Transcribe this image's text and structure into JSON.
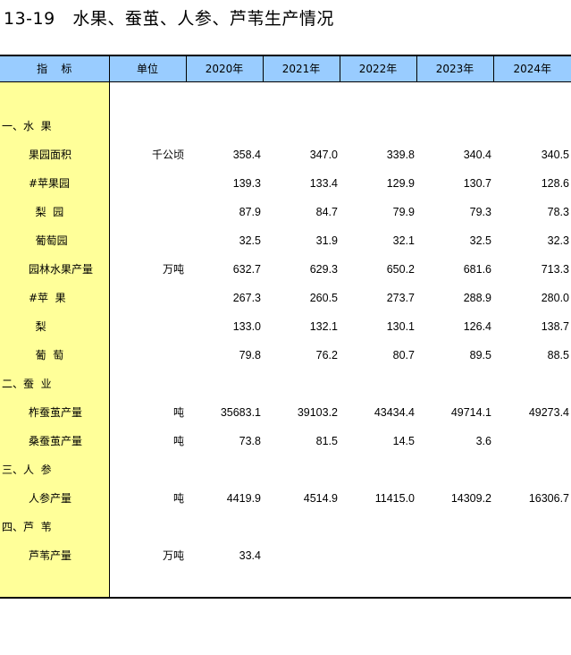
{
  "title": "13-19   水果、蚕茧、人参、芦苇生产情况",
  "headers": [
    "指    标",
    "单位",
    "2020年",
    "2021年",
    "2022年",
    "2023年",
    "2024年"
  ],
  "rows": [
    {
      "label": "一、水  果",
      "type": "section",
      "unit": "",
      "values": [
        "",
        "",
        "",
        "",
        ""
      ]
    },
    {
      "label": "果园面积",
      "type": "sub",
      "unit": "千公顷",
      "values": [
        "358.4",
        "347.0",
        "339.8",
        "340.4",
        "340.5"
      ]
    },
    {
      "label": "#苹果园",
      "type": "sub",
      "unit": "",
      "values": [
        "139.3",
        "133.4",
        "129.9",
        "130.7",
        "128.6"
      ]
    },
    {
      "label": "  梨  园",
      "type": "sub",
      "unit": "",
      "values": [
        "87.9",
        "84.7",
        "79.9",
        "79.3",
        "78.3"
      ]
    },
    {
      "label": "  葡萄园",
      "type": "sub",
      "unit": "",
      "values": [
        "32.5",
        "31.9",
        "32.1",
        "32.5",
        "32.3"
      ]
    },
    {
      "label": "园林水果产量",
      "type": "sub",
      "unit": "万吨",
      "values": [
        "632.7",
        "629.3",
        "650.2",
        "681.6",
        "713.3"
      ]
    },
    {
      "label": "#苹  果",
      "type": "sub",
      "unit": "",
      "values": [
        "267.3",
        "260.5",
        "273.7",
        "288.9",
        "280.0"
      ]
    },
    {
      "label": "  梨",
      "type": "sub",
      "unit": "",
      "values": [
        "133.0",
        "132.1",
        "130.1",
        "126.4",
        "138.7"
      ]
    },
    {
      "label": "  葡  萄",
      "type": "sub",
      "unit": "",
      "values": [
        "79.8",
        "76.2",
        "80.7",
        "89.5",
        "88.5"
      ]
    },
    {
      "label": "二、蚕  业",
      "type": "section",
      "unit": "",
      "values": [
        "",
        "",
        "",
        "",
        ""
      ]
    },
    {
      "label": "柞蚕茧产量",
      "type": "sub",
      "unit": "吨",
      "values": [
        "35683.1",
        "39103.2",
        "43434.4",
        "49714.1",
        "49273.4"
      ]
    },
    {
      "label": "桑蚕茧产量",
      "type": "sub",
      "unit": "吨",
      "values": [
        "73.8",
        "81.5",
        "14.5",
        "3.6",
        ""
      ]
    },
    {
      "label": "三、人  参",
      "type": "section",
      "unit": "",
      "values": [
        "",
        "",
        "",
        "",
        ""
      ]
    },
    {
      "label": "人参产量",
      "type": "sub",
      "unit": "吨",
      "values": [
        "4419.9",
        "4514.9",
        "11415.0",
        "14309.2",
        "16306.7"
      ]
    },
    {
      "label": "四、芦  苇",
      "type": "section",
      "unit": "",
      "values": [
        "",
        "",
        "",
        "",
        ""
      ]
    },
    {
      "label": "芦苇产量",
      "type": "sub",
      "unit": "万吨",
      "values": [
        "33.4",
        "",
        "",
        "",
        ""
      ]
    }
  ],
  "colors": {
    "header_bg": "#99ccff",
    "indicator_bg": "#ffff99"
  }
}
